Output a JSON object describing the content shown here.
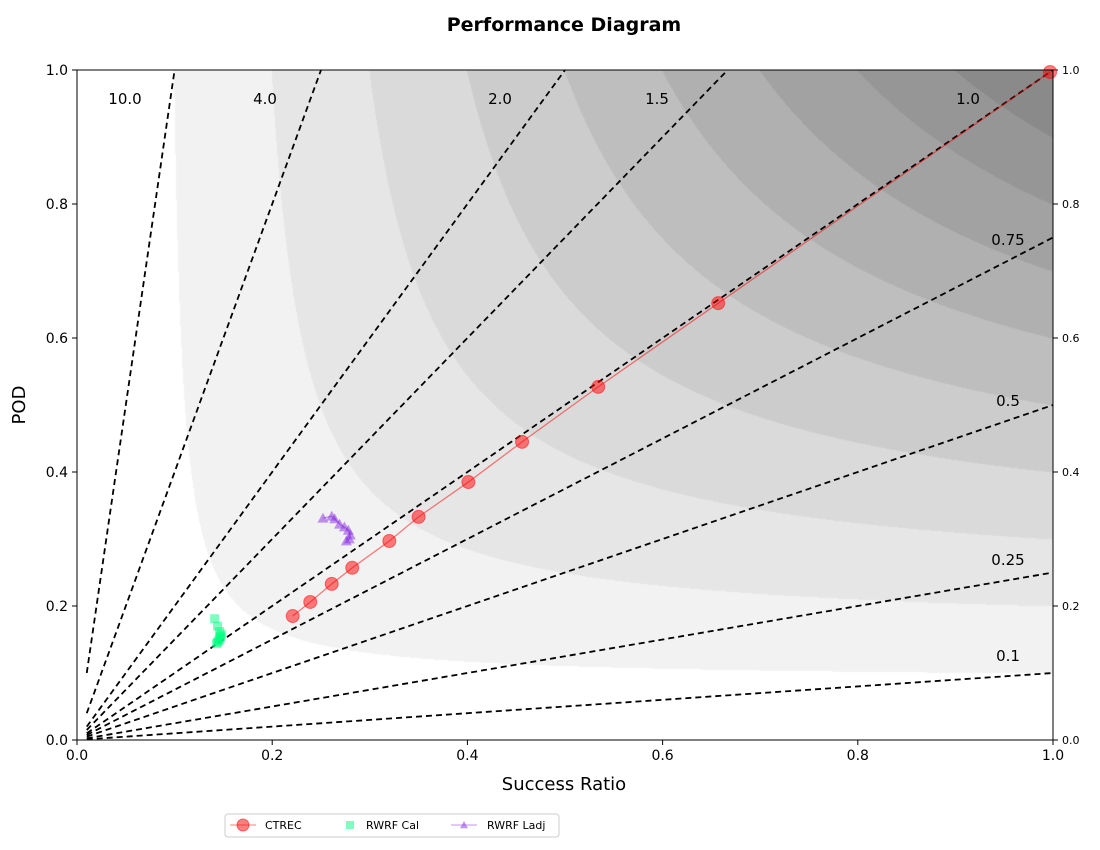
{
  "chart_data": {
    "type": "scatter",
    "title": "Performance Diagram",
    "xlabel": "Success Ratio",
    "ylabel": "POD",
    "xlim": [
      0,
      1
    ],
    "ylim": [
      0,
      1
    ],
    "xticks": [
      "0.0",
      "0.2",
      "0.4",
      "0.6",
      "0.8",
      "1.0"
    ],
    "yticks": [
      "0.0",
      "0.2",
      "0.4",
      "0.6",
      "0.8",
      "1.0"
    ],
    "csi_levels": [
      0.1,
      0.2,
      0.3,
      0.4,
      0.5,
      0.6,
      0.7,
      0.8,
      0.9
    ],
    "bias_lines": [
      {
        "value": 10.0,
        "label": "10.0"
      },
      {
        "value": 4.0,
        "label": "4.0"
      },
      {
        "value": 2.0,
        "label": "2.0"
      },
      {
        "value": 1.5,
        "label": "1.5"
      },
      {
        "value": 1.0,
        "label": "1.0"
      },
      {
        "value": 0.75,
        "label": "0.75"
      },
      {
        "value": 0.5,
        "label": "0.5"
      },
      {
        "value": 0.25,
        "label": "0.25"
      },
      {
        "value": 0.1,
        "label": "0.1"
      }
    ],
    "legend_position": "bottom-center",
    "series": [
      {
        "name": "CTREC",
        "marker": "circle",
        "color": "#ff0000",
        "line": true,
        "x": [
          0.221,
          0.239,
          0.261,
          0.282,
          0.32,
          0.35,
          0.401,
          0.456,
          0.534,
          0.657,
          0.997
        ],
        "y": [
          0.185,
          0.206,
          0.233,
          0.257,
          0.297,
          0.333,
          0.385,
          0.445,
          0.527,
          0.652,
          0.997
        ]
      },
      {
        "name": "RWRF Cal",
        "marker": "square",
        "color": "#00ff7f",
        "line": false,
        "x": [
          0.141,
          0.144,
          0.146,
          0.147,
          0.146,
          0.148,
          0.145,
          0.143,
          0.147,
          0.144
        ],
        "y": [
          0.181,
          0.17,
          0.162,
          0.155,
          0.15,
          0.158,
          0.148,
          0.144,
          0.153,
          0.146
        ]
      },
      {
        "name": "RWRF Ladj",
        "marker": "triangle",
        "color": "#8a2be2",
        "line": true,
        "x": [
          0.252,
          0.261,
          0.264,
          0.269,
          0.274,
          0.278,
          0.28,
          0.279,
          0.276
        ],
        "y": [
          0.331,
          0.334,
          0.33,
          0.322,
          0.318,
          0.313,
          0.306,
          0.3,
          0.297
        ]
      }
    ]
  }
}
